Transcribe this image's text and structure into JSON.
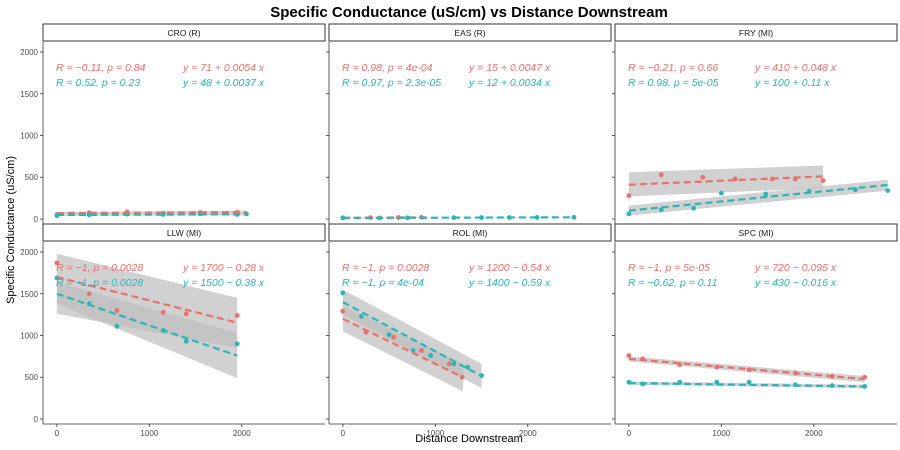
{
  "chart_data": {
    "type": "scatter",
    "title": "Specific Conductance (uS/cm) vs Distance Downstream",
    "xlabel": "Distance Downstream",
    "ylabel": "Specific Conductance (uS/cm)",
    "xlim": [
      -150,
      2900
    ],
    "ylim": [
      -60,
      2120
    ],
    "x_ticks": [
      0,
      1000,
      2000
    ],
    "y_ticks": [
      0,
      500,
      1000,
      1500,
      2000
    ],
    "grid": false,
    "colors": {
      "red": "#E8716B",
      "teal": "#2BB5B8",
      "band": "#BEBEBE"
    },
    "panels": [
      {
        "name": "CRO (R)",
        "series": [
          {
            "color": "red",
            "stat": "R = −0.11, p = 0.84",
            "equation": "y = 71 + 0.0054 x",
            "points": [
              [
                0,
                50
              ],
              [
                350,
                75
              ],
              [
                760,
                85
              ],
              [
                1150,
                70
              ],
              [
                1550,
                78
              ],
              [
                1950,
                80
              ]
            ],
            "fit": [
              [
                0,
                71
              ],
              [
                2050,
                82
              ]
            ],
            "band": [
              [
                0,
                58,
                84
              ],
              [
                2050,
                65,
                99
              ]
            ]
          },
          {
            "color": "teal",
            "stat": "R = 0.52, p = 0.23",
            "equation": "y = 48 + 0.0037 x",
            "points": [
              [
                0,
                40
              ],
              [
                350,
                50
              ],
              [
                760,
                58
              ],
              [
                1150,
                55
              ],
              [
                1550,
                62
              ],
              [
                1950,
                55
              ],
              [
                2050,
                60
              ]
            ],
            "fit": [
              [
                0,
                48
              ],
              [
                2050,
                56
              ]
            ],
            "band": [
              [
                0,
                38,
                58
              ],
              [
                2050,
                44,
                68
              ]
            ]
          }
        ]
      },
      {
        "name": "EAS (R)",
        "series": [
          {
            "color": "red",
            "stat": "R = 0.98, p = 4e-04",
            "equation": "y = 15 + 0.0047 x",
            "points": [
              [
                0,
                15
              ],
              [
                300,
                16
              ],
              [
                600,
                18
              ],
              [
                850,
                19
              ]
            ],
            "fit": [
              [
                0,
                15
              ],
              [
                900,
                19
              ]
            ],
            "band": [
              [
                0,
                12,
                18
              ],
              [
                900,
                16,
                22
              ]
            ]
          },
          {
            "color": "teal",
            "stat": "R = 0.97, p = 2.3e-05",
            "equation": "y = 12 + 0.0034 x",
            "points": [
              [
                0,
                12
              ],
              [
                400,
                13
              ],
              [
                700,
                14
              ],
              [
                1200,
                16
              ],
              [
                1500,
                17
              ],
              [
                1800,
                18
              ],
              [
                2100,
                19
              ],
              [
                2500,
                20
              ]
            ],
            "fit": [
              [
                0,
                12
              ],
              [
                2500,
                20.5
              ]
            ],
            "band": [
              [
                0,
                10,
                14
              ],
              [
                2500,
                18,
                23
              ]
            ]
          }
        ]
      },
      {
        "name": "FRY (MI)",
        "series": [
          {
            "color": "red",
            "stat": "R = −0.21, p = 0.66",
            "equation": "y = 410 + 0.048 x",
            "points": [
              [
                0,
                280
              ],
              [
                350,
                530
              ],
              [
                800,
                500
              ],
              [
                1150,
                480
              ],
              [
                1550,
                480
              ],
              [
                1800,
                480
              ],
              [
                2100,
                460
              ]
            ],
            "fit": [
              [
                0,
                410
              ],
              [
                2100,
                511
              ]
            ],
            "band": [
              [
                0,
                270,
                560
              ],
              [
                2100,
                370,
                640
              ]
            ]
          },
          {
            "color": "teal",
            "stat": "R = 0.98, p = 5e-05",
            "equation": "y = 100 + 0.11 x",
            "points": [
              [
                0,
                60
              ],
              [
                350,
                110
              ],
              [
                700,
                130
              ],
              [
                1000,
                310
              ],
              [
                1480,
                300
              ],
              [
                1950,
                330
              ],
              [
                2450,
                350
              ],
              [
                2800,
                340
              ]
            ],
            "fit": [
              [
                0,
                100
              ],
              [
                2800,
                408
              ]
            ],
            "band": [
              [
                0,
                40,
                160
              ],
              [
                2800,
                340,
                470
              ]
            ]
          }
        ]
      },
      {
        "name": "LLW (MI)",
        "series": [
          {
            "color": "red",
            "stat": "R = −1, p = 0.0028",
            "equation": "y = 1700 − 0.28 x",
            "points": [
              [
                0,
                1870
              ],
              [
                350,
                1500
              ],
              [
                650,
                1300
              ],
              [
                1150,
                1280
              ],
              [
                1400,
                1260
              ],
              [
                1950,
                1240
              ]
            ],
            "fit": [
              [
                0,
                1700
              ],
              [
                1950,
                1154
              ]
            ],
            "band": [
              [
                0,
                1260,
                1980
              ],
              [
                1950,
                850,
                1450
              ]
            ]
          },
          {
            "color": "teal",
            "stat": "R = −1, p = 0.0028",
            "equation": "y = 1500 − 0.38 x",
            "points": [
              [
                0,
                1690
              ],
              [
                350,
                1380
              ],
              [
                650,
                1110
              ],
              [
                1150,
                1060
              ],
              [
                1400,
                930
              ],
              [
                1950,
                900
              ]
            ],
            "fit": [
              [
                0,
                1500
              ],
              [
                1950,
                759
              ]
            ],
            "band": [
              [
                0,
                1380,
                1640
              ],
              [
                1950,
                490,
                1030
              ]
            ]
          }
        ]
      },
      {
        "name": "ROL (MI)",
        "series": [
          {
            "color": "red",
            "stat": "R = −1, p = 0.0028",
            "equation": "y = 1200 − 0.54 x",
            "points": [
              [
                0,
                1290
              ],
              [
                250,
                1040
              ],
              [
                550,
                980
              ],
              [
                850,
                820
              ],
              [
                1150,
                660
              ],
              [
                1290,
                500
              ]
            ],
            "fit": [
              [
                0,
                1200
              ],
              [
                1300,
                498
              ]
            ],
            "band": [
              [
                0,
                1050,
                1360
              ],
              [
                1300,
                330,
                660
              ]
            ]
          },
          {
            "color": "teal",
            "stat": "R = −1, p = 4e-04",
            "equation": "y = 1400 − 0.59 x",
            "points": [
              [
                0,
                1510
              ],
              [
                200,
                1230
              ],
              [
                500,
                1010
              ],
              [
                760,
                820
              ],
              [
                950,
                760
              ],
              [
                1200,
                660
              ],
              [
                1350,
                620
              ],
              [
                1500,
                520
              ]
            ],
            "fit": [
              [
                0,
                1400
              ],
              [
                1500,
                515
              ]
            ],
            "band": [
              [
                0,
                1250,
                1550
              ],
              [
                1500,
                370,
                660
              ]
            ]
          }
        ]
      },
      {
        "name": "SPC (MI)",
        "series": [
          {
            "color": "red",
            "stat": "R = −1, p = 5e-05",
            "equation": "y = 720 − 0.095 x",
            "points": [
              [
                0,
                760
              ],
              [
                150,
                720
              ],
              [
                550,
                650
              ],
              [
                950,
                620
              ],
              [
                1300,
                590
              ],
              [
                1800,
                550
              ],
              [
                2200,
                510
              ],
              [
                2550,
                500
              ]
            ],
            "fit": [
              [
                0,
                720
              ],
              [
                2550,
                478
              ]
            ],
            "band": [
              [
                0,
                690,
                750
              ],
              [
                2550,
                440,
                515
              ]
            ]
          },
          {
            "color": "teal",
            "stat": "R = −0.62, p = 0.11",
            "equation": "y = 430 − 0.016 x",
            "points": [
              [
                0,
                440
              ],
              [
                150,
                420
              ],
              [
                550,
                440
              ],
              [
                950,
                440
              ],
              [
                1300,
                440
              ],
              [
                1800,
                410
              ],
              [
                2200,
                400
              ],
              [
                2550,
                390
              ]
            ],
            "fit": [
              [
                0,
                430
              ],
              [
                2550,
                389
              ]
            ],
            "band": [
              [
                0,
                410,
                450
              ],
              [
                2550,
                370,
                410
              ]
            ]
          }
        ]
      }
    ]
  }
}
